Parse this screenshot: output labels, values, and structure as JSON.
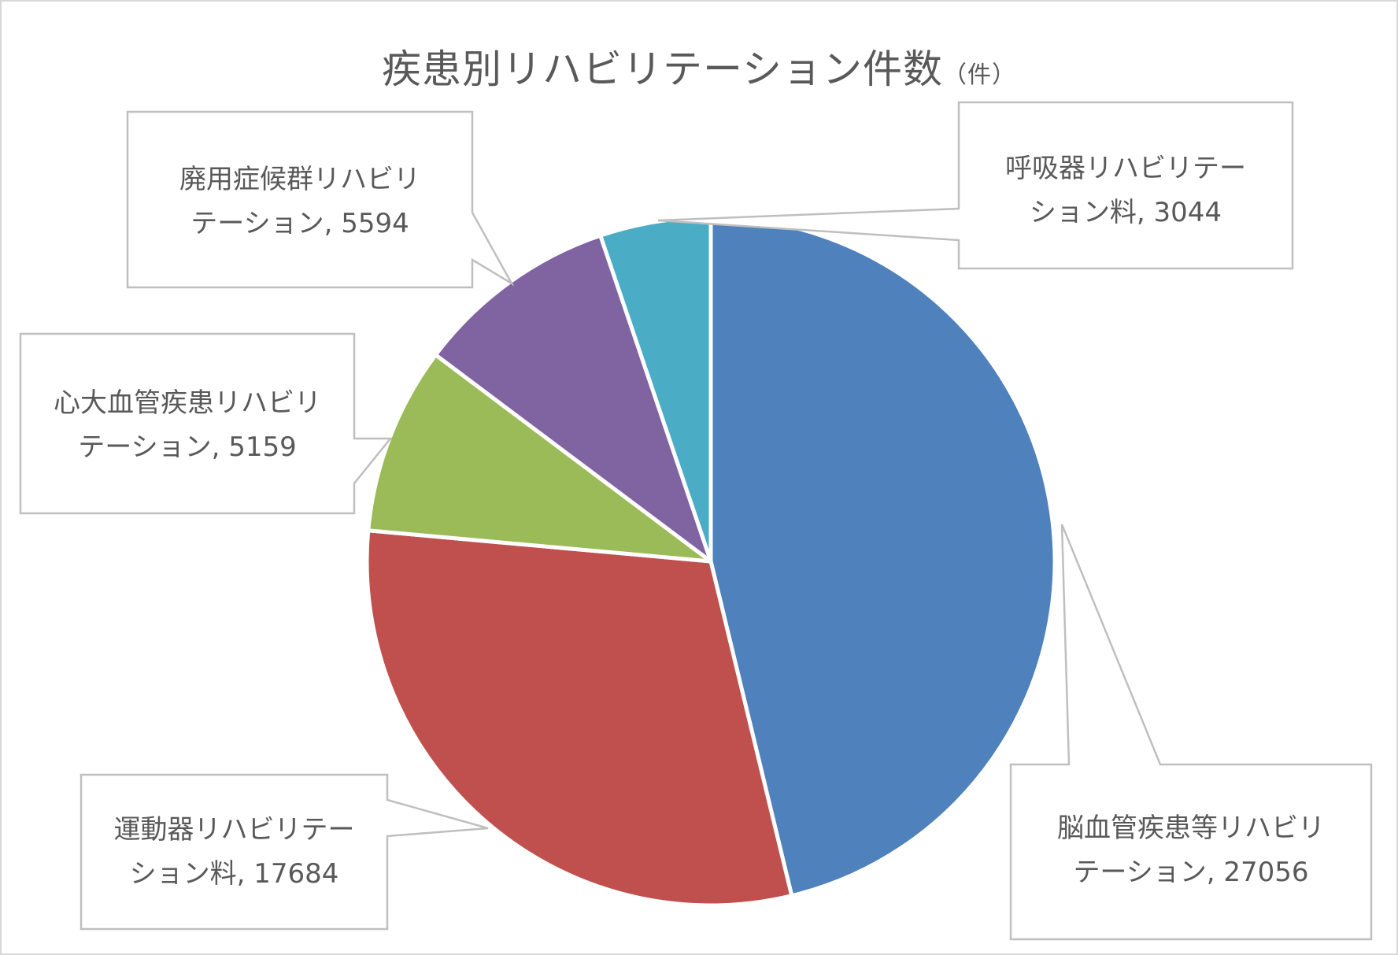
{
  "chart_data": {
    "type": "pie",
    "title": "疾患別リハビリテーション件数",
    "title_unit": "（件）",
    "start_angle_deg": 0,
    "direction": "clockwise",
    "categories": [
      "脳血管疾患等リハビリテーション",
      "運動器リハビリテーション料",
      "心大血管疾患リハビリテーション",
      "廃用症候群リハビリテーション",
      "呼吸器リハビリテーション料"
    ],
    "values": [
      27056,
      17684,
      5159,
      5594,
      3044
    ],
    "colors": [
      "#4f81bd",
      "#c0504d",
      "#9bbb59",
      "#8064a2",
      "#4bacc6"
    ],
    "data_labels": "category, value",
    "legend": "none"
  },
  "labels": {
    "title_main": "疾患別リハビリテーション件数",
    "title_unit": "（件）",
    "callouts": [
      {
        "line1": "脳血管疾患等リハビリ",
        "line2": "テーション, 27056"
      },
      {
        "line1": "運動器リハビリテー",
        "line2": "ション料, 17684"
      },
      {
        "line1": "心大血管疾患リハビリ",
        "line2": "テーション, 5159"
      },
      {
        "line1": "廃用症候群リハビリ",
        "line2": "テーション, 5594"
      },
      {
        "line1": "呼吸器リハビリテー",
        "line2": "ション料, 3044"
      }
    ]
  }
}
